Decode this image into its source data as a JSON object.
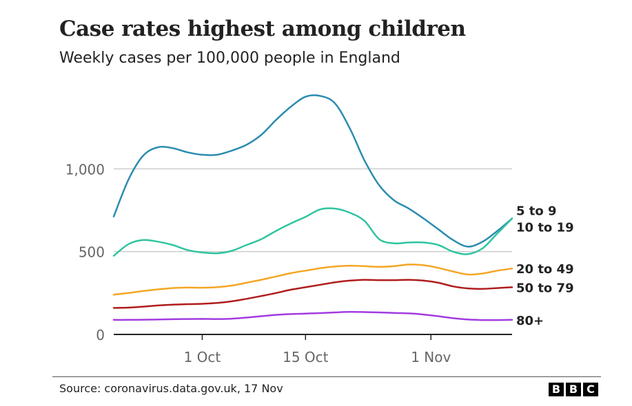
{
  "header": {
    "title": "Case rates highest among children",
    "subtitle": "Weekly cases per 100,000 people in England"
  },
  "footer": {
    "source": "Source: coronavirus.data.gov.uk, 17 Nov",
    "logo_letters": [
      "B",
      "B",
      "C"
    ]
  },
  "chart_data": {
    "type": "line",
    "title": "Case rates highest among children",
    "subtitle": "Weekly cases per 100,000 people in England",
    "xlabel": "",
    "ylabel": "",
    "x_range": [
      "2020-09-19",
      "2020-11-12"
    ],
    "ylim": [
      0,
      1500
    ],
    "y_ticks": [
      0,
      500,
      1000
    ],
    "y_tick_labels": [
      "0",
      "500",
      "1,000"
    ],
    "x_ticks": [
      "2020-10-01",
      "2020-10-15",
      "2020-11-01"
    ],
    "x_tick_labels": [
      "1 Oct",
      "15 Oct",
      "1 Nov"
    ],
    "grid": "horizontal",
    "legend": "direct labels at right end of lines",
    "series": [
      {
        "name": "5 to 9",
        "color": "#2b8cb0",
        "x": [
          "2020-09-19",
          "2020-09-21",
          "2020-09-23",
          "2020-09-25",
          "2020-09-27",
          "2020-09-29",
          "2020-10-01",
          "2020-10-03",
          "2020-10-05",
          "2020-10-07",
          "2020-10-09",
          "2020-10-11",
          "2020-10-13",
          "2020-10-15",
          "2020-10-17",
          "2020-10-19",
          "2020-10-21",
          "2020-10-23",
          "2020-10-25",
          "2020-10-27",
          "2020-10-29",
          "2020-10-31",
          "2020-11-02",
          "2020-11-04",
          "2020-11-06",
          "2020-11-08",
          "2020-11-10",
          "2020-11-12"
        ],
        "values": [
          712,
          935,
          1080,
          1130,
          1125,
          1100,
          1085,
          1085,
          1110,
          1145,
          1205,
          1295,
          1375,
          1435,
          1440,
          1395,
          1245,
          1050,
          900,
          810,
          760,
          700,
          635,
          570,
          530,
          560,
          625,
          700
        ]
      },
      {
        "name": "10 to 19",
        "color": "#2ec4a0",
        "x": [
          "2020-09-19",
          "2020-09-21",
          "2020-09-23",
          "2020-09-25",
          "2020-09-27",
          "2020-09-29",
          "2020-10-01",
          "2020-10-03",
          "2020-10-05",
          "2020-10-07",
          "2020-10-09",
          "2020-10-11",
          "2020-10-13",
          "2020-10-15",
          "2020-10-17",
          "2020-10-19",
          "2020-10-21",
          "2020-10-23",
          "2020-10-25",
          "2020-10-27",
          "2020-10-29",
          "2020-10-31",
          "2020-11-02",
          "2020-11-04",
          "2020-11-06",
          "2020-11-08",
          "2020-11-10",
          "2020-11-12"
        ],
        "values": [
          475,
          545,
          570,
          560,
          540,
          510,
          495,
          490,
          505,
          540,
          575,
          625,
          670,
          710,
          755,
          760,
          735,
          685,
          575,
          550,
          555,
          555,
          540,
          500,
          485,
          520,
          610,
          700
        ]
      },
      {
        "name": "20 to 49",
        "color": "#f5a623",
        "x": [
          "2020-09-19",
          "2020-09-21",
          "2020-09-23",
          "2020-09-25",
          "2020-09-27",
          "2020-09-29",
          "2020-10-01",
          "2020-10-03",
          "2020-10-05",
          "2020-10-07",
          "2020-10-09",
          "2020-10-11",
          "2020-10-13",
          "2020-10-15",
          "2020-10-17",
          "2020-10-19",
          "2020-10-21",
          "2020-10-23",
          "2020-10-25",
          "2020-10-27",
          "2020-10-29",
          "2020-10-31",
          "2020-11-02",
          "2020-11-04",
          "2020-11-06",
          "2020-11-08",
          "2020-11-10",
          "2020-11-12"
        ],
        "values": [
          240,
          250,
          262,
          272,
          280,
          283,
          282,
          285,
          295,
          312,
          330,
          350,
          370,
          385,
          400,
          410,
          415,
          412,
          408,
          412,
          422,
          418,
          402,
          380,
          362,
          368,
          385,
          398
        ]
      },
      {
        "name": "50 to 79",
        "color": "#b01c1c",
        "x": [
          "2020-09-19",
          "2020-09-21",
          "2020-09-23",
          "2020-09-25",
          "2020-09-27",
          "2020-09-29",
          "2020-10-01",
          "2020-10-03",
          "2020-10-05",
          "2020-10-07",
          "2020-10-09",
          "2020-10-11",
          "2020-10-13",
          "2020-10-15",
          "2020-10-17",
          "2020-10-19",
          "2020-10-21",
          "2020-10-23",
          "2020-10-25",
          "2020-10-27",
          "2020-10-29",
          "2020-10-31",
          "2020-11-02",
          "2020-11-04",
          "2020-11-06",
          "2020-11-08",
          "2020-11-10",
          "2020-11-12"
        ],
        "values": [
          160,
          162,
          168,
          175,
          180,
          183,
          185,
          190,
          200,
          215,
          232,
          250,
          270,
          285,
          300,
          315,
          325,
          330,
          328,
          328,
          330,
          325,
          312,
          290,
          278,
          275,
          280,
          285
        ]
      },
      {
        "name": "80+",
        "color": "#a23be0",
        "x": [
          "2020-09-19",
          "2020-09-21",
          "2020-09-23",
          "2020-09-25",
          "2020-09-27",
          "2020-09-29",
          "2020-10-01",
          "2020-10-03",
          "2020-10-05",
          "2020-10-07",
          "2020-10-09",
          "2020-10-11",
          "2020-10-13",
          "2020-10-15",
          "2020-10-17",
          "2020-10-19",
          "2020-10-21",
          "2020-10-23",
          "2020-10-25",
          "2020-10-27",
          "2020-10-29",
          "2020-10-31",
          "2020-11-02",
          "2020-11-04",
          "2020-11-06",
          "2020-11-08",
          "2020-11-10",
          "2020-11-12"
        ],
        "values": [
          88,
          88,
          89,
          90,
          92,
          93,
          94,
          93,
          95,
          102,
          110,
          118,
          123,
          126,
          129,
          133,
          136,
          135,
          133,
          130,
          127,
          120,
          110,
          98,
          90,
          87,
          87,
          88
        ]
      }
    ],
    "end_labels": [
      {
        "text": "5 to 9",
        "series": "5 to 9"
      },
      {
        "text": "10 to 19",
        "series": "10 to 19"
      },
      {
        "text": "20 to 49",
        "series": "20 to 49"
      },
      {
        "text": "50 to 79",
        "series": "50 to 79"
      },
      {
        "text": "80+",
        "series": "80+"
      }
    ],
    "colors": {
      "axis": "#222222",
      "grid": "#cccccc",
      "tick_label": "#666666",
      "end_label": "#222222"
    }
  }
}
